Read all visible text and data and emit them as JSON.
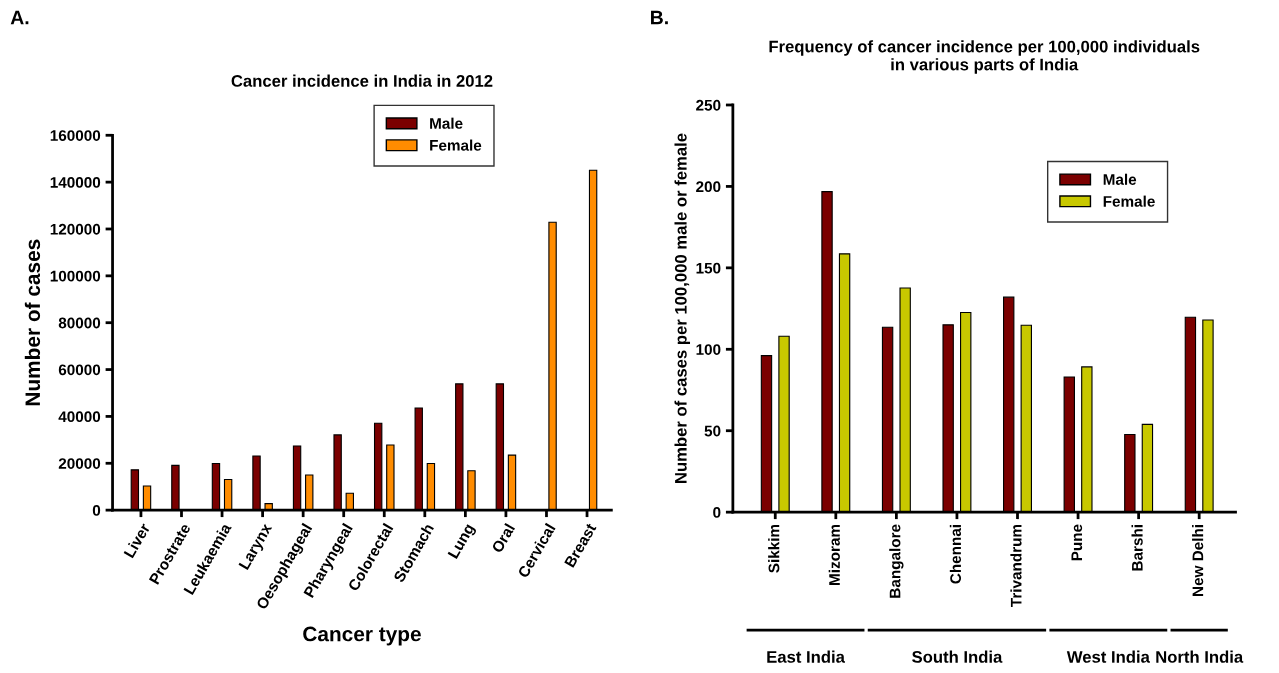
{
  "chart_data": [
    {
      "type": "bar",
      "title": "Cancer incidence in India in 2012",
      "xlabel": "Cancer type",
      "ylabel": "Number of cases",
      "categories": [
        "Liver",
        "Prostrate",
        "Leukaemia",
        "Larynx",
        "Oesophageal",
        "Pharyngeal",
        "Colorectal",
        "Stomach",
        "Lung",
        "Oral",
        "Cervical",
        "Breast"
      ],
      "series": [
        {
          "name": "Male",
          "color": "#7b0000",
          "values": [
            17200,
            19100,
            19900,
            23100,
            27400,
            32100,
            37100,
            43600,
            53900,
            53900,
            null,
            null
          ]
        },
        {
          "name": "Female",
          "color": "#ff8c00",
          "values": [
            10300,
            null,
            13100,
            2800,
            15000,
            7200,
            27800,
            19900,
            16800,
            23500,
            122900,
            145100
          ]
        }
      ],
      "ylim": [
        0,
        160000
      ],
      "yticks": [
        0,
        20000,
        40000,
        60000,
        80000,
        100000,
        120000,
        140000,
        160000
      ],
      "grid": false,
      "legend": "top right",
      "annotations": [
        "A."
      ]
    },
    {
      "type": "bar",
      "title": "Frequency of cancer incidence per 100,000 individuals\nin various parts of India",
      "ylabel": "Number of cases per 100,000 male or female",
      "categories": [
        "Sikkim",
        "Mizoram",
        "Bangalore",
        "Chennai",
        "Trivandrum",
        "Pune",
        "Barshi",
        "New Delhi"
      ],
      "series": [
        {
          "name": "Male",
          "color": "#7b0000",
          "values": [
            96.1,
            196.8,
            113.5,
            115,
            132,
            83,
            47.7,
            119.7
          ]
        },
        {
          "name": "Female",
          "color": "#c8c800",
          "values": [
            108,
            158.6,
            137.6,
            122.6,
            114.8,
            89.2,
            53.9,
            118
          ]
        }
      ],
      "ylim": [
        0,
        250
      ],
      "yticks": [
        0,
        50,
        100,
        150,
        200,
        250
      ],
      "grid": false,
      "legend": "top right",
      "annotations": [
        "B.",
        "East India",
        "South India",
        "West India",
        "North India"
      ]
    }
  ]
}
